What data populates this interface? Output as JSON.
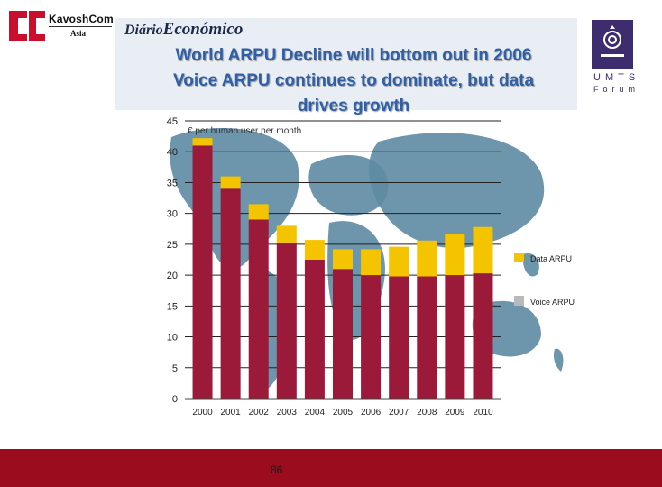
{
  "logos": {
    "kavosh_name": "KavoshCom",
    "kavosh_sub": "Asia",
    "diario_prefix": "Diário",
    "diario_main": "Económico",
    "umts_word": "UMTS",
    "umts_sub": "Forum"
  },
  "slide": {
    "title_line1": "World ARPU Decline will bottom out in 2006",
    "title_line2": "Voice ARPU continues to dominate, but data",
    "title_line3": "drives growth",
    "page_number": "86"
  },
  "colors": {
    "voice": "#9b1a3a",
    "data": "#f5c400",
    "footer": "#9b0d1e",
    "title": "#2e5fa8",
    "map": "#5d8aa2"
  },
  "chart_data": {
    "type": "bar",
    "stacked": true,
    "ylabel": "€ per human user per month",
    "ylim": [
      0,
      45
    ],
    "yticks": [
      0,
      5,
      10,
      15,
      20,
      25,
      30,
      35,
      40,
      45
    ],
    "categories": [
      "2000",
      "2001",
      "2002",
      "2003",
      "2004",
      "2005",
      "2006",
      "2007",
      "2008",
      "2009",
      "2010"
    ],
    "series": [
      {
        "name": "Voice ARPU",
        "values": [
          41,
          34,
          29,
          25.3,
          22.5,
          21,
          20,
          19.8,
          19.8,
          20,
          20.3
        ]
      },
      {
        "name": "Data ARPU",
        "values": [
          1.2,
          2,
          2.5,
          2.7,
          3.2,
          3.2,
          4.2,
          4.8,
          5.8,
          6.7,
          7.5
        ]
      }
    ],
    "legend": [
      "Data ARPU",
      "Voice ARPU"
    ],
    "legend_position": "right"
  }
}
